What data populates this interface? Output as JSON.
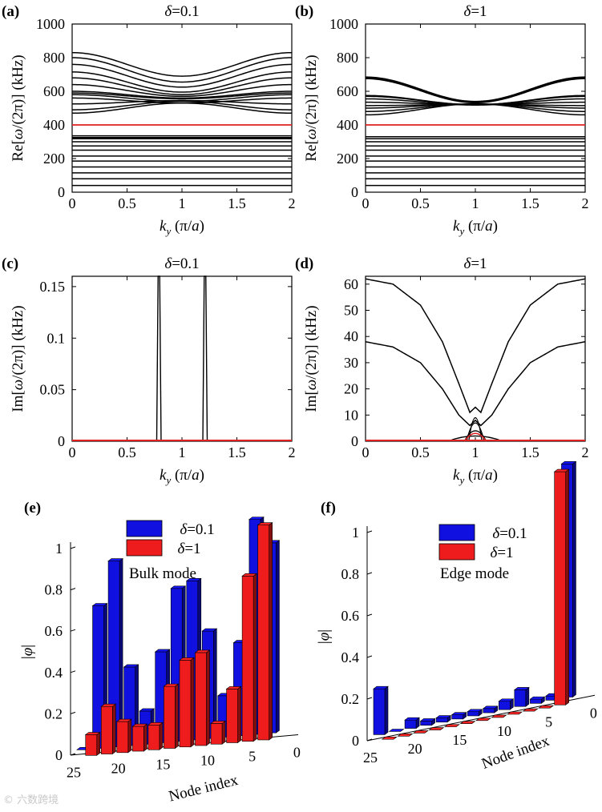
{
  "figure": {
    "panels": [
      {
        "id": "a",
        "label": "(a)",
        "title": "δ=0.1",
        "ylabel": "Re[ω/(2π)] (kHz)",
        "xlabel": "k_y (π/a)"
      },
      {
        "id": "b",
        "label": "(b)",
        "title": "δ=1",
        "ylabel": "Re[ω/(2π)] (kHz)",
        "xlabel": "k_y (π/a)"
      },
      {
        "id": "c",
        "label": "(c)",
        "title": "δ=0.1",
        "ylabel": "Im[ω/(2π)] (kHz)",
        "xlabel": "k_y (π/a)"
      },
      {
        "id": "d",
        "label": "(d)",
        "title": "δ=1",
        "ylabel": "Im[ω/(2π)] (kHz)",
        "xlabel": "k_y (π/a)"
      },
      {
        "id": "e",
        "label": "(e)",
        "zlabel": "|φ|",
        "xlabel": "Node index",
        "annotation": "Bulk mode",
        "legend": [
          "δ=0.1",
          "δ=1"
        ]
      },
      {
        "id": "f",
        "label": "(f)",
        "zlabel": "|φ|",
        "xlabel": "Node index",
        "annotation": "Edge mode",
        "legend": [
          "δ=0.1",
          "δ=1"
        ]
      }
    ]
  },
  "colors": {
    "blue": "#1010e0",
    "red": "#ee1c1c",
    "line": "#000000",
    "edge_state": "#e02020"
  },
  "watermark": "© 六数跨境",
  "chart_data": [
    {
      "panel": "a",
      "type": "line",
      "title": "δ=0.1",
      "xlabel": "k_y (π/a)",
      "ylabel": "Re[ω/(2π)] (kHz)",
      "xlim": [
        0,
        2
      ],
      "ylim": [
        0,
        1000
      ],
      "xticks": [
        0,
        0.5,
        1,
        1.5,
        2
      ],
      "xtick_labels": [
        "0",
        "0.5",
        "1",
        "1.5",
        "2"
      ],
      "yticks": [
        0,
        200,
        400,
        600,
        800,
        1000
      ],
      "ytick_labels": [
        "0",
        "200",
        "400",
        "600",
        "800",
        "1000"
      ],
      "bands_flat": [
        40,
        80,
        115,
        150,
        185,
        215,
        250,
        275,
        300,
        318,
        325,
        335
      ],
      "bands_dispersive": [
        [
          830,
          690
        ],
        [
          800,
          655
        ],
        [
          760,
          625
        ],
        [
          715,
          595
        ],
        [
          680,
          580
        ],
        [
          640,
          570
        ],
        [
          600,
          560
        ],
        [
          590,
          555
        ],
        [
          580,
          540
        ],
        [
          560,
          530
        ],
        [
          525,
          545
        ],
        [
          490,
          540
        ],
        [
          470,
          530
        ]
      ],
      "edge_band": {
        "value": 400,
        "color": "red"
      }
    },
    {
      "panel": "b",
      "type": "line",
      "title": "δ=1",
      "xlabel": "k_y (π/a)",
      "ylabel": "Re[ω/(2π)] (kHz)",
      "xlim": [
        0,
        2
      ],
      "ylim": [
        0,
        1000
      ],
      "xticks": [
        0,
        0.5,
        1,
        1.5,
        2
      ],
      "xtick_labels": [
        "0",
        "0.5",
        "1",
        "1.5",
        "2"
      ],
      "yticks": [
        0,
        200,
        400,
        600,
        800,
        1000
      ],
      "ytick_labels": [
        "0",
        "200",
        "400",
        "600",
        "800",
        "1000"
      ],
      "bands_flat": [
        40,
        80,
        115,
        150,
        185,
        215,
        250,
        275,
        300,
        318,
        330
      ],
      "bands_dispersive": [
        [
          685,
          540
        ],
        [
          680,
          535
        ],
        [
          675,
          532
        ],
        [
          575,
          520
        ],
        [
          570,
          520
        ],
        [
          555,
          518
        ],
        [
          535,
          520
        ],
        [
          515,
          522
        ],
        [
          500,
          525
        ],
        [
          480,
          525
        ],
        [
          460,
          525
        ]
      ],
      "edge_band": {
        "value": 400,
        "color": "red"
      }
    },
    {
      "panel": "c",
      "type": "line",
      "title": "δ=0.1",
      "xlabel": "k_y (π/a)",
      "ylabel": "Im[ω/(2π)] (kHz)",
      "xlim": [
        0,
        2
      ],
      "ylim": [
        0,
        0.16
      ],
      "xticks": [
        0,
        0.5,
        1,
        1.5,
        2
      ],
      "xtick_labels": [
        "0",
        "0.5",
        "1",
        "1.5",
        "2"
      ],
      "yticks": [
        0,
        0.05,
        0.1,
        0.15
      ],
      "ytick_labels": [
        "0",
        "0.05",
        "0.1",
        "0.15"
      ],
      "spikes": [
        {
          "k": 0.79,
          "height": 0.16
        },
        {
          "k": 1.21,
          "height": 0.16
        }
      ],
      "edge_band": {
        "value": 0,
        "color": "red"
      }
    },
    {
      "panel": "d",
      "type": "line",
      "title": "δ=1",
      "xlabel": "k_y (π/a)",
      "ylabel": "Im[ω/(2π)] (kHz)",
      "xlim": [
        0,
        2
      ],
      "ylim": [
        0,
        63
      ],
      "xticks": [
        0,
        0.5,
        1,
        1.5,
        2
      ],
      "xtick_labels": [
        "0",
        "0.5",
        "1",
        "1.5",
        "2"
      ],
      "yticks": [
        0,
        10,
        20,
        30,
        40,
        50,
        60
      ],
      "ytick_labels": [
        "0",
        "10",
        "20",
        "30",
        "40",
        "50",
        "60"
      ],
      "series": [
        {
          "name": "upper",
          "k": [
            0,
            0.25,
            0.5,
            0.7,
            0.85,
            0.95,
            1,
            1.05,
            1.15,
            1.3,
            1.5,
            1.75,
            2
          ],
          "values": [
            62,
            60,
            52,
            38,
            22,
            11,
            13,
            11,
            22,
            38,
            52,
            60,
            62
          ]
        },
        {
          "name": "lower",
          "k": [
            0,
            0.25,
            0.5,
            0.7,
            0.85,
            0.95,
            1,
            1.05,
            1.15,
            1.3,
            1.5,
            1.75,
            2
          ],
          "values": [
            38,
            36,
            30,
            20,
            10,
            6,
            8,
            6,
            10,
            20,
            30,
            36,
            38
          ]
        }
      ],
      "edge_band": {
        "value": 0,
        "color": "red",
        "bump": 3
      }
    },
    {
      "panel": "e",
      "type": "bar3d",
      "annotation": "Bulk mode",
      "zlabel": "|φ|",
      "xlabel": "Node index",
      "zlim": [
        0,
        1
      ],
      "zticks": [
        0,
        0.2,
        0.4,
        0.6,
        0.8,
        1
      ],
      "ztick_labels": [
        "0",
        "0.2",
        "0.4",
        "0.6",
        "0.8",
        "1"
      ],
      "node_tick_labels": [
        "25",
        "20",
        "15",
        "10",
        "5",
        "0"
      ],
      "series": [
        {
          "name": "δ=0.1",
          "values": [
            0,
            0.69,
            0.9,
            0.38,
            0.16,
            0.44,
            0.74,
            0.77,
            0.52,
            0.2,
            0.45,
            1.04,
            0.92
          ]
        },
        {
          "name": "δ=1",
          "values": [
            0.1,
            0.23,
            0.15,
            0.12,
            0.12,
            0.3,
            0.42,
            0.45,
            0.1,
            0.26,
            0.8,
            1.04
          ]
        }
      ]
    },
    {
      "panel": "f",
      "type": "bar3d",
      "annotation": "Edge mode",
      "zlabel": "|φ|",
      "xlabel": "Node index",
      "zlim": [
        0,
        1
      ],
      "zticks": [
        0,
        0.2,
        0.4,
        0.6,
        0.8,
        1
      ],
      "ztick_labels": [
        "0",
        "0.2",
        "0.4",
        "0.6",
        "0.8",
        "1"
      ],
      "node_tick_labels": [
        "25",
        "20",
        "15",
        "10",
        "5",
        "0"
      ],
      "series": [
        {
          "name": "δ=0.1",
          "values": [
            0.22,
            0,
            0.04,
            0.02,
            0.02,
            0.02,
            0.02,
            0.02,
            0.04,
            0.08,
            0.02,
            0.02,
            1.12
          ]
        },
        {
          "name": "δ=1",
          "values": [
            0,
            0,
            0,
            0,
            0,
            0,
            0,
            0,
            0,
            0,
            0,
            1.12
          ]
        }
      ]
    }
  ]
}
